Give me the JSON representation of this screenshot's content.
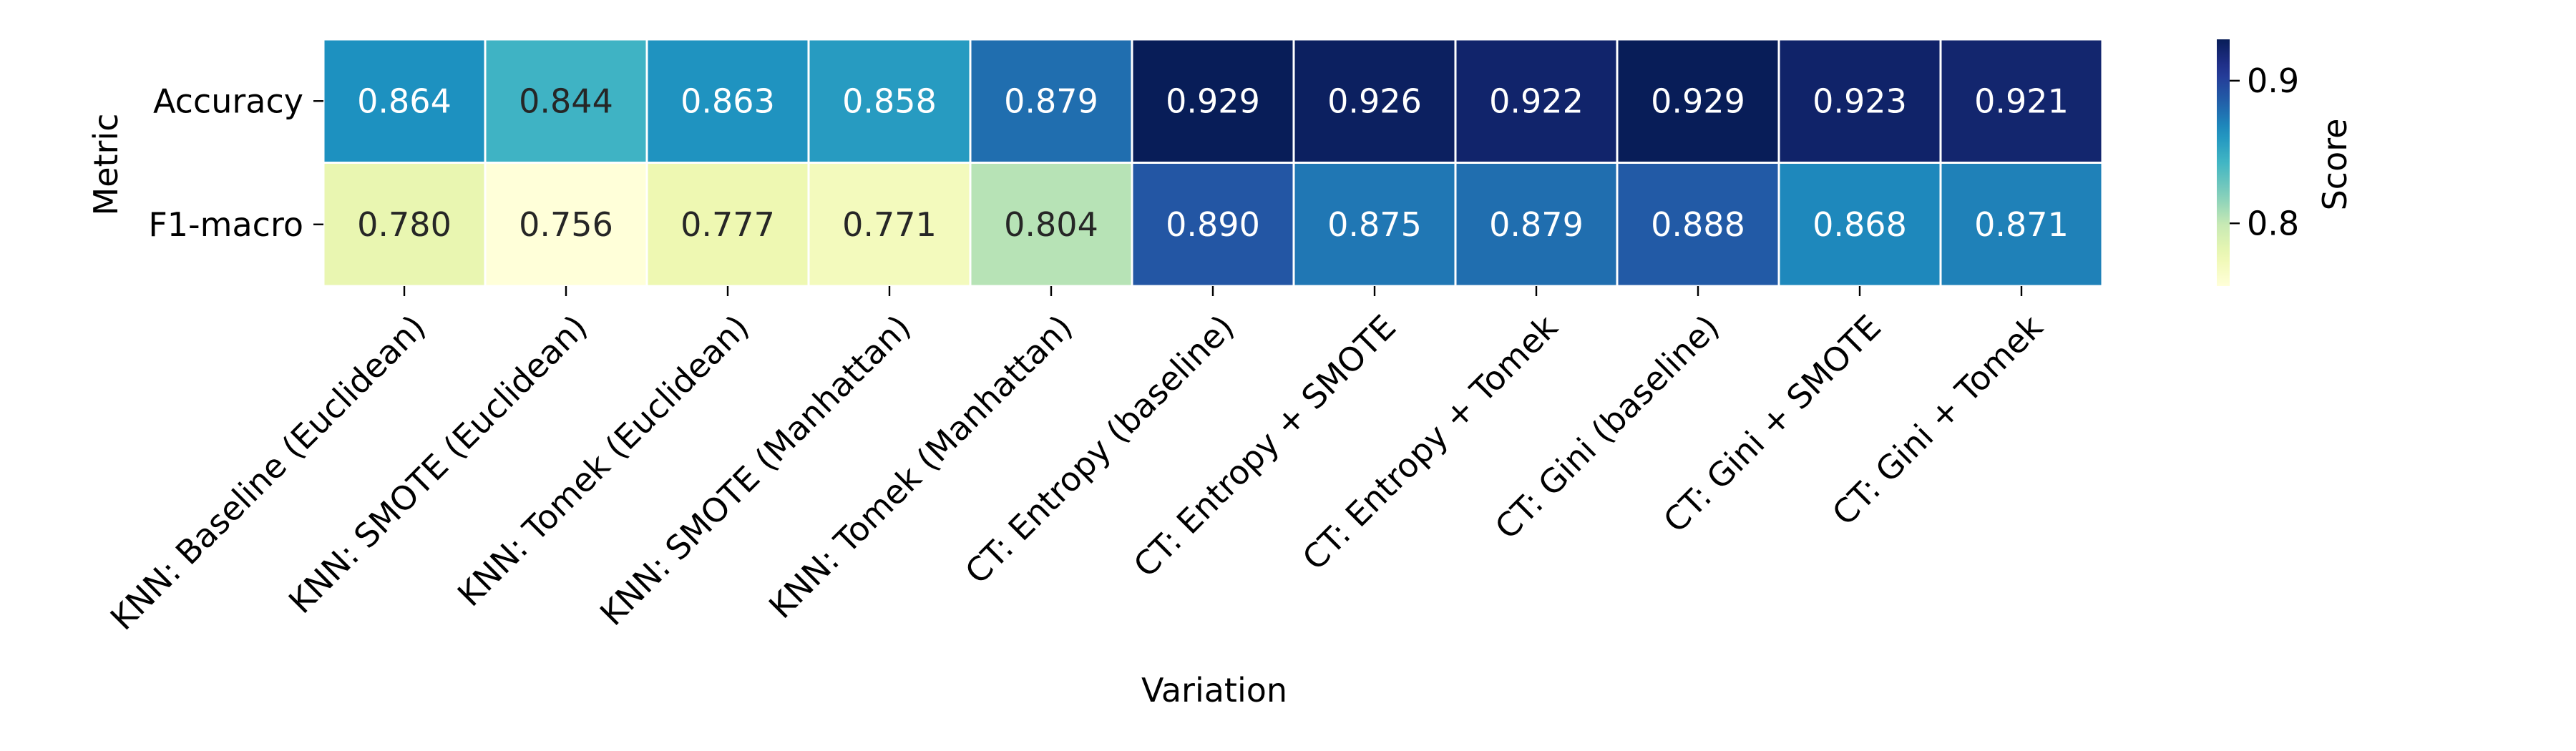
{
  "chart_data": {
    "type": "heatmap",
    "xlabel": "Variation",
    "ylabel": "Metric",
    "colorbar_label": "Score",
    "colormap": "YlGnBu",
    "value_format": "3 decimals",
    "color_range": [
      0.756,
      0.929
    ],
    "colorbar_ticks": [
      "0.8",
      "0.9"
    ],
    "columns": [
      "KNN: Baseline (Euclidean)",
      "KNN: SMOTE (Euclidean)",
      "KNN: Tomek (Euclidean)",
      "KNN: SMOTE (Manhattan)",
      "KNN: Tomek (Manhattan)",
      "CT: Entropy (baseline)",
      "CT: Entropy + SMOTE",
      "CT: Entropy + Tomek",
      "CT: Gini (baseline)",
      "CT: Gini + SMOTE",
      "CT: Gini + Tomek"
    ],
    "rows": [
      {
        "name": "Accuracy",
        "values": [
          0.864,
          0.844,
          0.863,
          0.858,
          0.879,
          0.929,
          0.926,
          0.922,
          0.929,
          0.923,
          0.921
        ]
      },
      {
        "name": "F1-macro",
        "values": [
          0.78,
          0.756,
          0.777,
          0.771,
          0.804,
          0.89,
          0.875,
          0.879,
          0.888,
          0.868,
          0.871
        ]
      }
    ]
  }
}
